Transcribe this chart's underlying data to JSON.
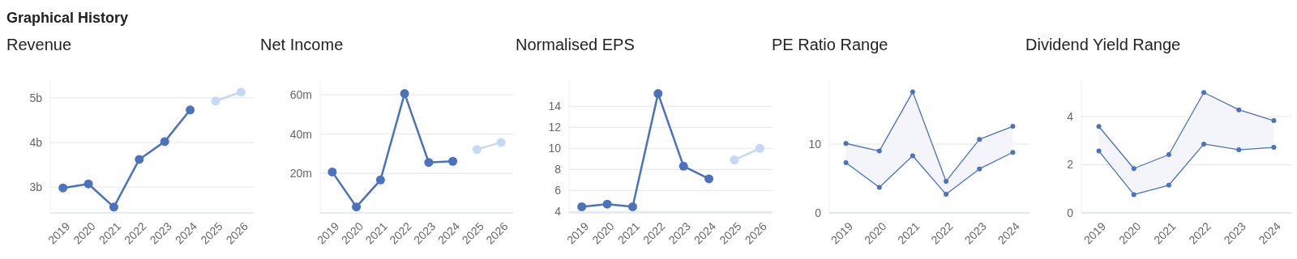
{
  "chart_data": [
    {
      "type": "other",
      "title": "Graphical History"
    },
    {
      "type": "line",
      "title": "Revenue",
      "categories": [
        "2019",
        "2020",
        "2021",
        "2022",
        "2023",
        "2024",
        "2025",
        "2026"
      ],
      "ylim": [
        2.42,
        5.38
      ],
      "yticks": [
        {
          "value": 3,
          "label": "3b"
        },
        {
          "value": 4,
          "label": "4b"
        },
        {
          "value": 5,
          "label": "5b"
        }
      ],
      "grid": "y",
      "marker": "circle",
      "series": [
        {
          "color": "#4a72bf",
          "values": [
            2.98,
            3.07,
            2.55,
            3.62,
            4.02,
            4.73,
            null,
            null
          ]
        },
        {
          "color": "#c5d8f5",
          "values": [
            null,
            null,
            null,
            null,
            null,
            null,
            4.93,
            5.13
          ]
        }
      ]
    },
    {
      "type": "line",
      "title": "Net Income",
      "categories": [
        "2019",
        "2020",
        "2021",
        "2022",
        "2023",
        "2024",
        "2025",
        "2026"
      ],
      "ylim": [
        0,
        67
      ],
      "yticks": [
        {
          "value": 20,
          "label": "20m"
        },
        {
          "value": 40,
          "label": "40m"
        },
        {
          "value": 60,
          "label": "60m"
        }
      ],
      "grid": "y",
      "marker": "circle",
      "series": [
        {
          "color": "#4a72bf",
          "values": [
            20.8,
            3,
            16.7,
            60.6,
            25.6,
            26.2,
            null,
            null
          ]
        },
        {
          "color": "#c5d8f5",
          "values": [
            null,
            null,
            null,
            null,
            null,
            null,
            32.2,
            35.8
          ]
        }
      ]
    },
    {
      "type": "line",
      "title": "Normalised EPS",
      "categories": [
        "2019",
        "2020",
        "2021",
        "2022",
        "2023",
        "2024",
        "2025",
        "2026"
      ],
      "ylim": [
        3.87,
        16.4
      ],
      "yticks": [
        4,
        6,
        8,
        10,
        12,
        14
      ],
      "grid": "y",
      "marker": "circle",
      "series": [
        {
          "color": "#4a72bf",
          "values": [
            4.45,
            4.7,
            4.45,
            15.2,
            8.3,
            7.1,
            null,
            null
          ]
        },
        {
          "color": "#c5d8f5",
          "values": [
            null,
            null,
            null,
            null,
            null,
            null,
            8.9,
            10.0
          ]
        }
      ]
    },
    {
      "type": "line",
      "title": "PE Ratio Range",
      "categories": [
        "2019",
        "2020",
        "2021",
        "2022",
        "2023",
        "2024"
      ],
      "ylim": [
        0,
        19.2
      ],
      "yticks": [
        0,
        10
      ],
      "grid": "y",
      "marker": "circle",
      "series": [
        {
          "color": "#4a72bf",
          "values": [
            10.1,
            9.0,
            17.6,
            4.6,
            10.7,
            12.6
          ],
          "upper": [
            10.1,
            9.0,
            17.6,
            4.6,
            10.7,
            12.6
          ],
          "lower": [
            7.3,
            3.7,
            8.3,
            2.7,
            6.4,
            8.8
          ]
        },
        {
          "color": "#4a72bf",
          "values": [
            7.3,
            3.7,
            8.3,
            2.7,
            6.4,
            8.8
          ]
        }
      ]
    },
    {
      "type": "line",
      "title": "Dividend Yield Range",
      "categories": [
        "2019",
        "2020",
        "2021",
        "2022",
        "2023",
        "2024"
      ],
      "ylim": [
        0,
        5.48
      ],
      "yticks": [
        0,
        2,
        4
      ],
      "grid": "y",
      "marker": "circle",
      "series": [
        {
          "color": "#4a72bf",
          "values": [
            3.59,
            1.84,
            2.42,
            5.0,
            4.28,
            3.83
          ],
          "upper": [
            3.59,
            1.84,
            2.42,
            5.0,
            4.28,
            3.83
          ],
          "lower": [
            2.57,
            0.76,
            1.15,
            2.86,
            2.62,
            2.72
          ]
        },
        {
          "color": "#4a72bf",
          "values": [
            2.57,
            0.76,
            1.15,
            2.86,
            2.62,
            2.72
          ]
        }
      ]
    }
  ]
}
